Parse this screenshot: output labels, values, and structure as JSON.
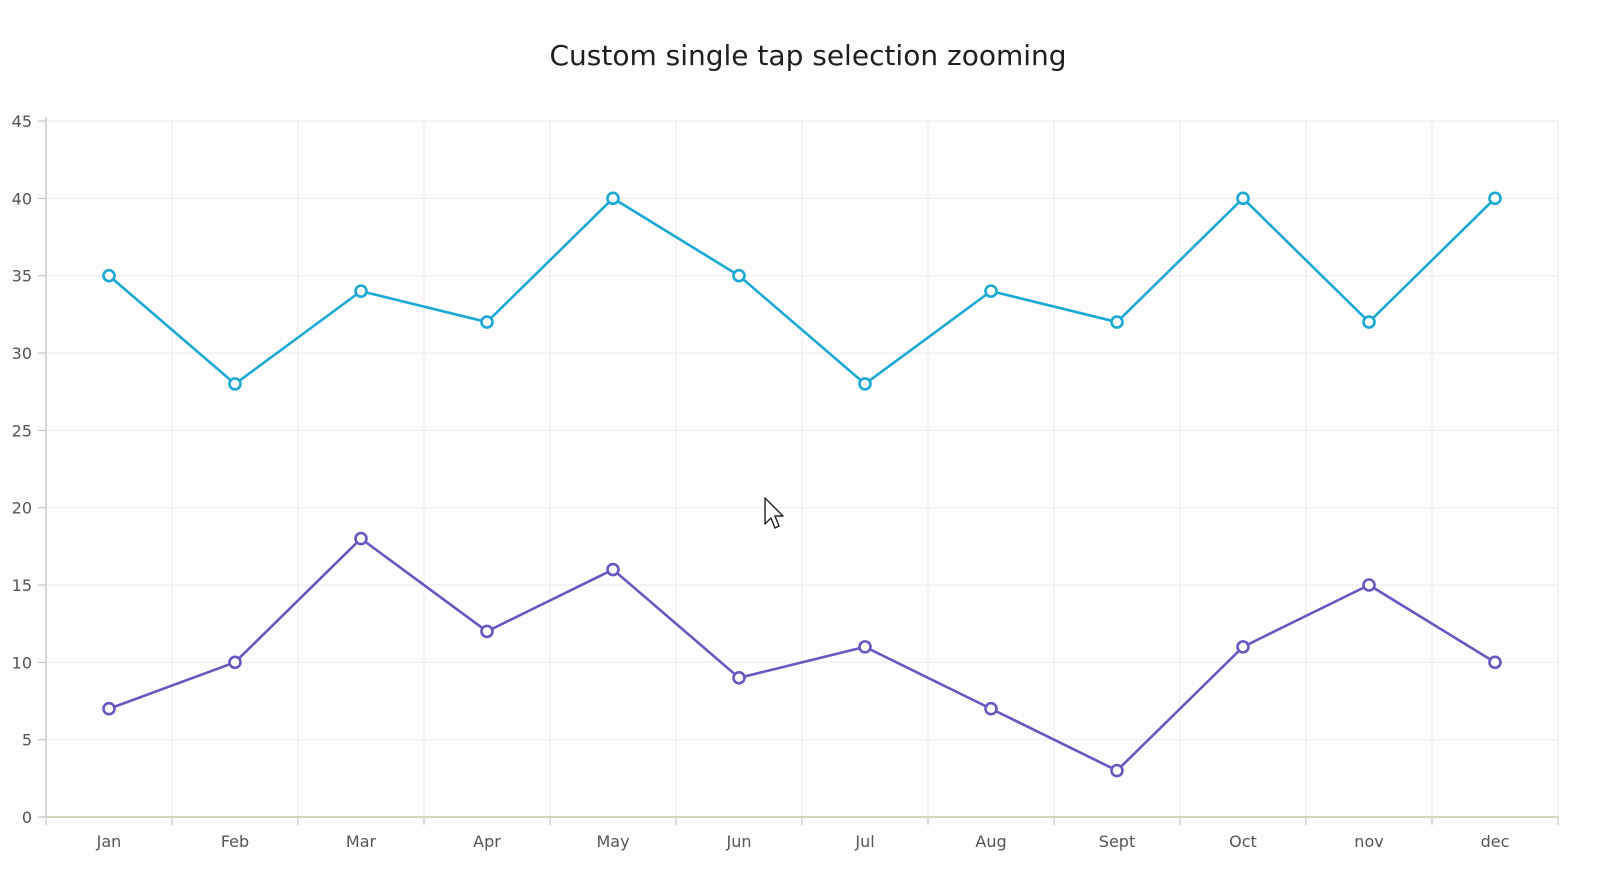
{
  "chart_data": {
    "type": "line",
    "title": "Custom single tap selection zooming",
    "xlabel": "",
    "ylabel": "",
    "categories": [
      "Jan",
      "Feb",
      "Mar",
      "Apr",
      "May",
      "Jun",
      "Jul",
      "Aug",
      "Sept",
      "Oct",
      "nov",
      "dec"
    ],
    "ylim": [
      0,
      45
    ],
    "yticks": [
      0,
      5,
      10,
      15,
      20,
      25,
      30,
      35,
      40,
      45
    ],
    "grid": true,
    "legend": "none",
    "series": [
      {
        "color": "#1ba9d3",
        "values": [
          35,
          28,
          34,
          32,
          40,
          35,
          28,
          34,
          32,
          40,
          32,
          40
        ]
      },
      {
        "color": "#6a56bf",
        "values": [
          7,
          10,
          18,
          12,
          16,
          9,
          11,
          7,
          3,
          11,
          15,
          10
        ]
      }
    ]
  },
  "cursor_icon": "arrow-pointer-icon"
}
